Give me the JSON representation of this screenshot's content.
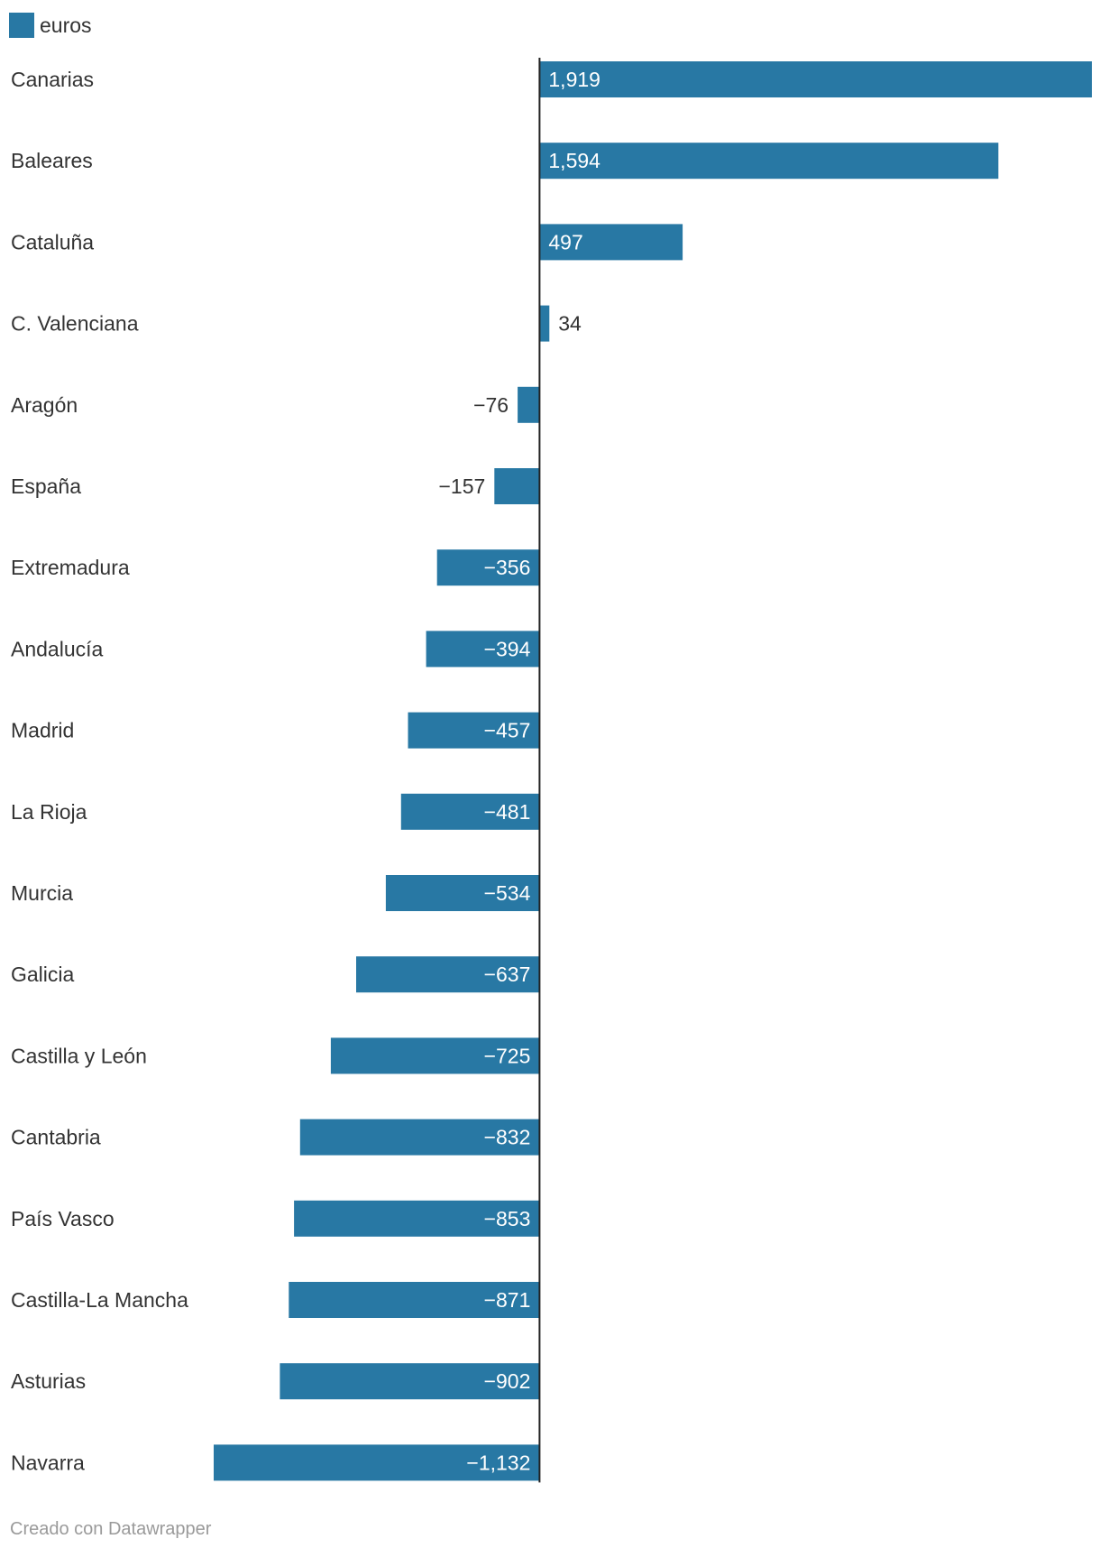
{
  "chart_data": {
    "type": "bar",
    "orientation": "horizontal",
    "legend": [
      {
        "label": "euros",
        "color": "#2878a4"
      }
    ],
    "categories": [
      "Canarias",
      "Baleares",
      "Cataluña",
      "C. Valenciana",
      "Aragón",
      "España",
      "Extremadura",
      "Andalucía",
      "Madrid",
      "La Rioja",
      "Murcia",
      "Galicia",
      "Castilla y León",
      "Cantabria",
      "País Vasco",
      "Castilla-La Mancha",
      "Asturias",
      "Navarra"
    ],
    "values": [
      1919,
      1594,
      497,
      34,
      -76,
      -157,
      -356,
      -394,
      -457,
      -481,
      -534,
      -637,
      -725,
      -832,
      -853,
      -871,
      -902,
      -1132
    ],
    "value_labels": [
      "1,919",
      "1,594",
      "497",
      "34",
      "−76",
      "−157",
      "−356",
      "−394",
      "−457",
      "−481",
      "−534",
      "−637",
      "−725",
      "−832",
      "−853",
      "−871",
      "−902",
      "−1,132"
    ],
    "xlim": [
      -1132,
      1919
    ],
    "title": "",
    "xlabel": "",
    "ylabel": "",
    "grid": false
  },
  "colors": {
    "bar": "#2878a4",
    "axis": "#222222",
    "label_inside": "#ffffff",
    "label_outside": "#333333",
    "text": "#333333",
    "footer": "#9a9a9a"
  },
  "footer": {
    "text": "Creado con Datawrapper"
  }
}
